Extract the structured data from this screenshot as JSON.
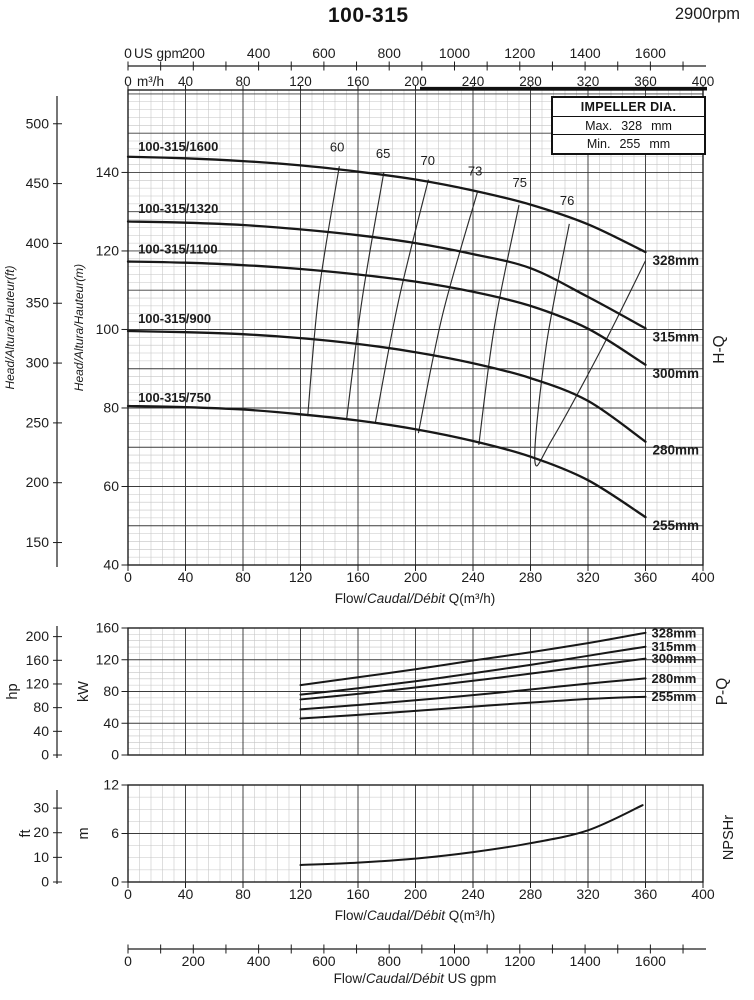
{
  "header": {
    "title": "100-315",
    "rpm": "2900rpm"
  },
  "impeller_box": {
    "title": "IMPELLER DIA.",
    "rows": [
      {
        "label": "Max.",
        "value": "328",
        "unit": "mm"
      },
      {
        "label": "Min.",
        "value": "255",
        "unit": "mm"
      }
    ]
  },
  "side_labels": {
    "hq": "H-Q",
    "pq": "P-Q",
    "npshr": "NPSHr"
  },
  "axis_titles": {
    "flow_m3h": {
      "plain": "Flow/",
      "italic": "Caudal/Débit",
      "unit": " Q(m³/h)"
    },
    "flow_usgpm": {
      "plain": "Flow/",
      "italic": "Caudal/Débit",
      "unit": "  US gpm"
    },
    "head_ft": "Head/Altura/Hauteur(ft)",
    "head_m": "Head/Altura/Hauteur(m)",
    "usgpm_inline": "US gpm",
    "m3h_inline": "m³/h",
    "power_kw": "kW",
    "power_hp": "hp",
    "npsh_m": "m",
    "npsh_ft": "ft"
  },
  "chart_data": [
    {
      "type": "line",
      "name": "H-Q",
      "x_top_axis": {
        "unit": "US gpm",
        "tick_step": 100,
        "tick_max": 1700,
        "labels": [
          0,
          200,
          400,
          600,
          800,
          1000,
          1200,
          1400,
          1600
        ]
      },
      "x_axis": {
        "unit": "m³/h",
        "min": 0,
        "max": 400,
        "major_step": 40,
        "minor_step": 8,
        "labels": [
          0,
          40,
          80,
          120,
          160,
          200,
          240,
          280,
          320,
          360,
          400
        ]
      },
      "y_axis_m": {
        "unit": "m",
        "min": 40,
        "max": 161,
        "major_step": 10,
        "minor_step": 2,
        "labels": [
          40,
          60,
          80,
          100,
          120,
          140
        ]
      },
      "y_axis_ft": {
        "unit": "ft",
        "labels": [
          150,
          200,
          250,
          300,
          350,
          400,
          450,
          500
        ]
      },
      "series": [
        {
          "label": "100-315/1600",
          "diameter": "328mm",
          "label_head": 146.5,
          "q": [
            0,
            40,
            80,
            120,
            160,
            200,
            240,
            280,
            320,
            360
          ],
          "head": [
            144,
            143.6,
            142.9,
            141.8,
            140.2,
            138.2,
            135.4,
            131.8,
            126.8,
            119.7
          ]
        },
        {
          "label": "100-315/1320",
          "diameter": "315mm",
          "label_head": 130.7,
          "q": [
            0,
            40,
            80,
            120,
            160,
            200,
            240,
            280,
            320,
            360
          ],
          "head": [
            127.5,
            127.2,
            126.6,
            125.5,
            124,
            122,
            119.2,
            115.6,
            108.3,
            100.3
          ]
        },
        {
          "label": "100-315/1100",
          "diameter": "300mm",
          "label_head": 120.4,
          "q": [
            0,
            40,
            80,
            120,
            160,
            200,
            240,
            280,
            320,
            360
          ],
          "head": [
            117.3,
            117,
            116.4,
            115.4,
            114,
            112.2,
            109.6,
            106,
            100.2,
            91
          ]
        },
        {
          "label": "100-315/900",
          "diameter": "280mm",
          "label_head": 102.7,
          "q": [
            0,
            40,
            80,
            120,
            160,
            200,
            240,
            280,
            320,
            360
          ],
          "head": [
            99.6,
            99.3,
            98.8,
            97.8,
            96.3,
            94.2,
            91.4,
            87.6,
            81.8,
            71.4
          ]
        },
        {
          "label": "100-315/750",
          "diameter": "255mm",
          "label_head": 82.5,
          "q": [
            0,
            40,
            80,
            120,
            160,
            200,
            240,
            280,
            320,
            360
          ],
          "head": [
            80.5,
            80.2,
            79.6,
            78.4,
            76.8,
            74.6,
            71.6,
            67.6,
            61.6,
            52.2
          ]
        }
      ],
      "efficiency_lines": [
        {
          "label": "60",
          "label_pos": [
            145.5,
            146.3
          ],
          "points": [
            [
              147,
              141.6
            ],
            [
              133,
              110
            ],
            [
              125,
              77.9
            ]
          ]
        },
        {
          "label": "65",
          "label_pos": [
            177.5,
            144.7
          ],
          "points": [
            [
              178,
              140.1
            ],
            [
              163,
              108
            ],
            [
              152,
              76.9
            ]
          ]
        },
        {
          "label": "70",
          "label_pos": [
            208.5,
            142.9
          ],
          "points": [
            [
              209,
              138.2
            ],
            [
              188,
              107
            ],
            [
              172,
              76.2
            ]
          ]
        },
        {
          "label": "73",
          "label_pos": [
            241.5,
            140.2
          ],
          "points": [
            [
              243,
              134.9
            ],
            [
              219,
              104
            ],
            [
              202,
              73.6
            ]
          ]
        },
        {
          "label": "75",
          "label_pos": [
            272.5,
            137.3
          ],
          "points": [
            [
              272,
              131.7
            ],
            [
              255,
              101
            ],
            [
              244,
              70.6
            ]
          ]
        },
        {
          "label": "76",
          "label_pos": [
            305.5,
            132.7
          ],
          "points": [
            [
              307,
              126.9
            ],
            [
              291,
              96
            ],
            [
              283,
              66.8
            ],
            [
              295,
              72
            ],
            [
              330,
              95.5
            ],
            [
              360,
              117.5
            ]
          ]
        }
      ]
    },
    {
      "type": "line",
      "name": "P-Q",
      "y_axis_kw": {
        "unit": "kW",
        "min": 0,
        "max": 160,
        "major_step": 40,
        "minor_step": 8,
        "labels": [
          0,
          40,
          80,
          120,
          160
        ]
      },
      "y_axis_hp": {
        "unit": "hp",
        "labels": [
          0,
          40,
          80,
          120,
          160,
          200
        ]
      },
      "q": [
        120,
        160,
        200,
        240,
        280,
        320,
        360
      ],
      "series": [
        {
          "diameter": "328mm",
          "kw": [
            88,
            98,
            108,
            119,
            129.5,
            141,
            154
          ]
        },
        {
          "diameter": "315mm",
          "kw": [
            76,
            84,
            93,
            103,
            113.5,
            125,
            136.5
          ]
        },
        {
          "diameter": "300mm",
          "kw": [
            70,
            77,
            85,
            93.5,
            102.5,
            112,
            121.5
          ]
        },
        {
          "diameter": "280mm",
          "kw": [
            57.5,
            63,
            69,
            75.5,
            82.5,
            90,
            96.5
          ]
        },
        {
          "diameter": "255mm",
          "kw": [
            46,
            50.5,
            55.5,
            61,
            66,
            70.5,
            73.5
          ]
        }
      ]
    },
    {
      "type": "line",
      "name": "NPSHr",
      "y_axis_m": {
        "unit": "m",
        "min": 0,
        "max": 12,
        "major_step": 6,
        "minor_step": 1.5,
        "labels": [
          0,
          6,
          12
        ]
      },
      "y_axis_ft": {
        "unit": "ft",
        "labels": [
          0,
          10,
          20,
          30
        ]
      },
      "x_axis": {
        "labels": [
          0,
          40,
          80,
          120,
          160,
          200,
          240,
          280,
          320,
          360,
          400
        ]
      },
      "series": [
        {
          "label": "NPSHr",
          "q": [
            120,
            160,
            200,
            240,
            280,
            320,
            358
          ],
          "m": [
            2.1,
            2.4,
            2.9,
            3.7,
            4.8,
            6.4,
            9.5
          ]
        }
      ]
    }
  ],
  "bottom_axis": {
    "tick_step": 100,
    "tick_max": 1700,
    "labels": [
      0,
      200,
      400,
      600,
      800,
      1000,
      1200,
      1400,
      1600
    ]
  }
}
